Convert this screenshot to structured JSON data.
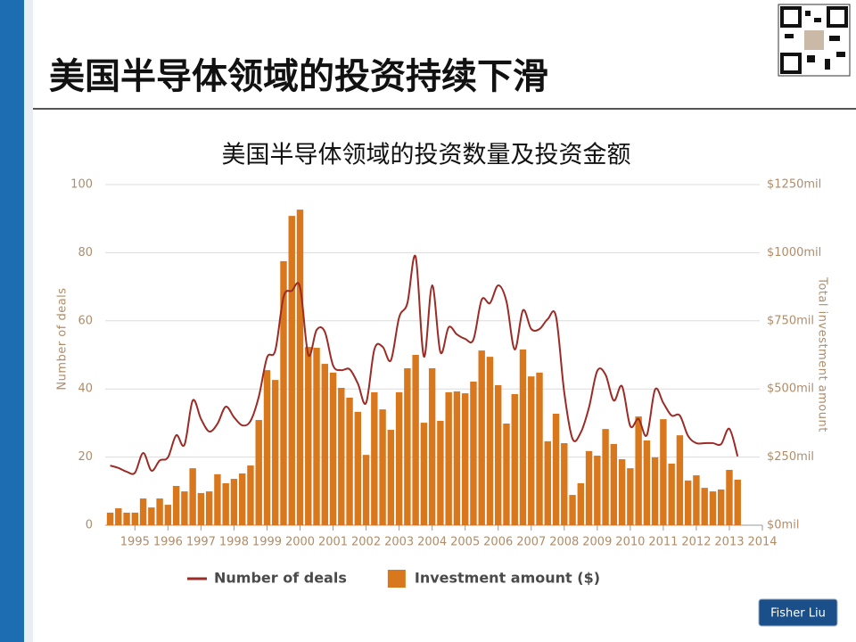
{
  "header": {
    "title": "美国半导体领域的投资持续下滑"
  },
  "footer": {
    "badge": "Fisher Liu"
  },
  "chart_data": {
    "type": "bar-line",
    "title": "美国半导体领域的投资数量及投资金额",
    "y_label": "Number of deals",
    "y2_label": "Total investment amount",
    "x": [
      1994.25,
      1994.5,
      1994.75,
      1995,
      1995.25,
      1995.5,
      1995.75,
      1996,
      1996.25,
      1996.5,
      1996.75,
      1997,
      1997.25,
      1997.5,
      1997.75,
      1998,
      1998.25,
      1998.5,
      1998.75,
      1999,
      1999.25,
      1999.5,
      1999.75,
      2000,
      2000.25,
      2000.5,
      2000.75,
      2001,
      2001.25,
      2001.5,
      2001.75,
      2002,
      2002.25,
      2002.5,
      2002.75,
      2003,
      2003.25,
      2003.5,
      2003.75,
      2004,
      2004.25,
      2004.5,
      2004.75,
      2005,
      2005.25,
      2005.5,
      2005.75,
      2006,
      2006.25,
      2006.5,
      2006.75,
      2007,
      2007.25,
      2007.5,
      2007.75,
      2008,
      2008.25,
      2008.5,
      2008.75,
      2009,
      2009.25,
      2009.5,
      2009.75,
      2010,
      2010.25,
      2010.5,
      2010.75,
      2011,
      2011.25,
      2011.5,
      2011.75,
      2012,
      2012.25,
      2012.5,
      2012.75,
      2013,
      2013.25
    ],
    "series": [
      {
        "name": "Number of deals",
        "type": "line",
        "color": "#9c2b25",
        "values": [
          17.5,
          16.8,
          15.7,
          15.4,
          21.2,
          16,
          19,
          19.9,
          26.4,
          23.6,
          36.6,
          31.2,
          27.5,
          29.8,
          34.8,
          31.7,
          29.3,
          30.6,
          37.7,
          49.2,
          51.3,
          67,
          68.8,
          69.9,
          50,
          57.3,
          56.8,
          46.9,
          45.5,
          45.8,
          41.6,
          35.9,
          51.6,
          52.4,
          48.4,
          61,
          65.2,
          78.8,
          49.5,
          70.4,
          50.8,
          58.1,
          56,
          54.7,
          54.5,
          66.2,
          65.2,
          70.4,
          65.7,
          51.6,
          63.1,
          57.6,
          57.6,
          60.5,
          61.3,
          39,
          25.4,
          27.2,
          34.6,
          45.3,
          44.2,
          36.6,
          40.8,
          29.1,
          31.2,
          26.4,
          39.8,
          35.9,
          32.2,
          32.2,
          26.2,
          24.1,
          24.1,
          24.1,
          23.8,
          28.3,
          20.2
        ]
      },
      {
        "name": "Investment amount ($)",
        "type": "bar",
        "axis": "y2",
        "color": "#d8771c",
        "values": [
          46,
          62,
          46,
          46,
          98,
          65,
          98,
          75,
          144,
          124,
          209,
          118,
          124,
          187,
          154,
          170,
          190,
          219,
          386,
          569,
          533,
          969,
          1135,
          1158,
          654,
          651,
          592,
          560,
          504,
          468,
          416,
          258,
          488,
          425,
          350,
          488,
          576,
          625,
          376,
          576,
          383,
          488,
          491,
          484,
          527,
          641,
          618,
          514,
          373,
          481,
          645,
          546,
          560,
          308,
          409,
          301,
          111,
          154,
          272,
          255,
          353,
          298,
          242,
          209,
          399,
          311,
          249,
          389,
          226,
          330,
          164,
          183,
          137,
          124,
          131,
          203,
          167
        ]
      }
    ],
    "xlim": [
      1994.1,
      2014
    ],
    "xticks": [
      1995,
      1996,
      1997,
      1998,
      1999,
      2000,
      2001,
      2002,
      2003,
      2004,
      2005,
      2006,
      2007,
      2008,
      2009,
      2010,
      2011,
      2012,
      2013,
      2014
    ],
    "ylim": [
      0,
      100
    ],
    "yticks": [
      0,
      20,
      40,
      60,
      80,
      100
    ],
    "y2lim": [
      0,
      1250
    ],
    "y2ticks": [
      {
        "value": 0,
        "label": "$0mil"
      },
      {
        "value": 250,
        "label": "$250mil"
      },
      {
        "value": 500,
        "label": "$500mil"
      },
      {
        "value": 750,
        "label": "$750mil"
      },
      {
        "value": 1000,
        "label": "$1000mil"
      },
      {
        "value": 1250,
        "label": "$1250mil"
      }
    ],
    "grid": true,
    "legend": "bottom"
  }
}
